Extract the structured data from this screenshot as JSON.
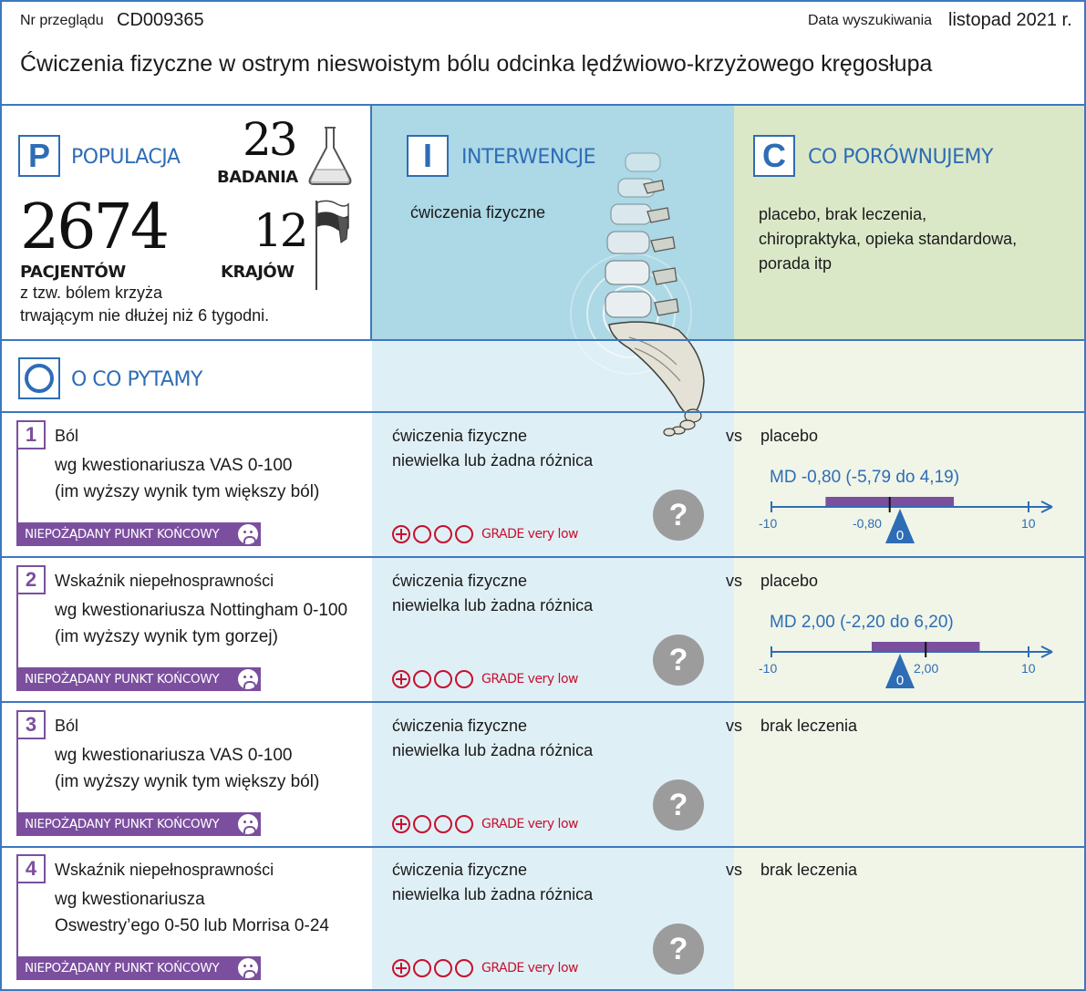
{
  "header": {
    "review_no_label": "Nr przeglądu",
    "review_no": "CD009365",
    "search_date_label": "Data wyszukiwania",
    "search_date": "listopad 2021 r.",
    "title": "Ćwiczenia fizyczne w ostrym nieswoistym bólu odcinka lędźwiowo-krzyżowego kręgosłupa"
  },
  "population": {
    "letter": "P",
    "label": "POPULACJA",
    "studies_count": "23",
    "studies_label": "BADANIA",
    "patients_count": "2674",
    "patients_label": "PACJENTÓW",
    "countries_count": "12",
    "countries_label": "KRAJÓW",
    "description_line1": "z tzw. bólem krzyża",
    "description_line2": "trwającym nie dłużej niż 6 tygodni."
  },
  "intervention": {
    "letter": "I",
    "label": "INTERWENCJE",
    "text": "ćwiczenia fizyczne"
  },
  "comparison": {
    "letter": "C",
    "label": "CO PORÓWNUJEMY",
    "line1": "placebo, brak leczenia,",
    "line2": "chiropraktyka, opieka standardowa,",
    "line3": "porada itp"
  },
  "outcomes_header": {
    "letter": "O",
    "label": "O CO PYTAMY"
  },
  "icons": {
    "flask": "flask-icon",
    "flag": "flag-icon",
    "spine": "spine-illustration",
    "question": "question-icon",
    "frown": "frown-icon"
  },
  "colors": {
    "accent_blue": "#2e6db5",
    "purple": "#7b4f9e",
    "grade_red": "#c8102e",
    "intervention_bg": "#add8e6",
    "comparison_bg": "#dbe8c8"
  },
  "outcomes": [
    {
      "number": "1",
      "title": "Ból",
      "line1": "wg kwestionariusza VAS 0-100",
      "line2": "(im wyższy wynik tym większy ból)",
      "endpoint": "NIEPOŻĄDANY PUNKT KOŃCOWY",
      "intervention": "ćwiczenia fizyczne",
      "result": "niewielka lub żadna różnica",
      "vs": "vs",
      "comparator": "placebo",
      "grade": "GRADE very low",
      "question": "?",
      "md_text": "MD -0,80 (-5,79 do 4,19)",
      "md": {
        "point": -0.8,
        "ci_low": -5.79,
        "ci_high": 4.19,
        "axis_min": -10,
        "axis_max": 10
      },
      "ticks": {
        "min": "-10",
        "max": "10",
        "point": "-0,80",
        "zero": "0"
      }
    },
    {
      "number": "2",
      "title": "Wskaźnik niepełnosprawności",
      "line1": "wg kwestionariusza Nottingham 0-100",
      "line2": "(im wyższy wynik tym gorzej)",
      "endpoint": "NIEPOŻĄDANY PUNKT KOŃCOWY",
      "intervention": "ćwiczenia fizyczne",
      "result": "niewielka lub żadna różnica",
      "vs": "vs",
      "comparator": "placebo",
      "grade": "GRADE very low",
      "question": "?",
      "md_text": "MD 2,00 (-2,20 do 6,20)",
      "md": {
        "point": 2.0,
        "ci_low": -2.2,
        "ci_high": 6.2,
        "axis_min": -10,
        "axis_max": 10
      },
      "ticks": {
        "min": "-10",
        "max": "10",
        "point": "2,00",
        "zero": "0"
      }
    },
    {
      "number": "3",
      "title": "Ból",
      "line1": "wg kwestionariusza VAS 0-100",
      "line2": "(im wyższy wynik tym większy ból)",
      "endpoint": "NIEPOŻĄDANY PUNKT KOŃCOWY",
      "intervention": "ćwiczenia fizyczne",
      "result": "niewielka lub żadna różnica",
      "vs": "vs",
      "comparator": "brak leczenia",
      "grade": "GRADE very low",
      "question": "?"
    },
    {
      "number": "4",
      "title": "Wskaźnik niepełnosprawności",
      "line1": "wg kwestionariusza",
      "line2": "Oswestry’ego 0-50 lub Morrisa 0-24",
      "endpoint": "NIEPOŻĄDANY PUNKT KOŃCOWY",
      "intervention": "ćwiczenia fizyczne",
      "result": "niewielka lub żadna różnica",
      "vs": "vs",
      "comparator": "brak leczenia",
      "grade": "GRADE very low",
      "question": "?"
    }
  ]
}
